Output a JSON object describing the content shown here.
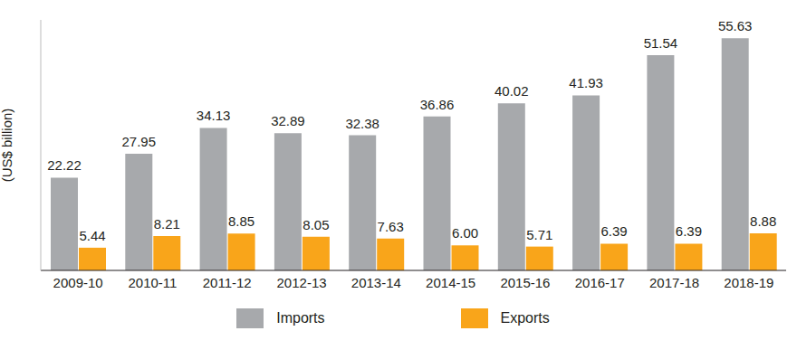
{
  "chart_data": {
    "type": "bar",
    "y_label": "(US$ billion)",
    "categories": [
      "2009-10",
      "2010-11",
      "2011-12",
      "2012-13",
      "2013-14",
      "2014-15",
      "2015-16",
      "2016-17",
      "2017-18",
      "2018-19"
    ],
    "series": [
      {
        "name": "Imports",
        "color": "#a7a9ac",
        "values": [
          22.22,
          27.95,
          34.13,
          32.89,
          32.38,
          36.86,
          40.02,
          41.93,
          51.54,
          55.63
        ],
        "value_labels": [
          "22.22",
          "27.95",
          "34.13",
          "32.89",
          "32.38",
          "36.86",
          "40.02",
          "41.93",
          "51.54",
          "55.63"
        ]
      },
      {
        "name": "Exports",
        "color": "#f9a51a",
        "values": [
          5.44,
          8.21,
          8.85,
          8.05,
          7.63,
          6.0,
          5.71,
          6.39,
          6.39,
          8.88
        ],
        "value_labels": [
          "5.44",
          "8.21",
          "8.85",
          "8.05",
          "7.63",
          "6.00",
          "5.71",
          "6.39",
          "6.39",
          "8.88"
        ]
      }
    ],
    "ylim": [
      0,
      60
    ],
    "tick_labels": "x",
    "grid": false,
    "legend": "bottom",
    "data_labels": true
  }
}
